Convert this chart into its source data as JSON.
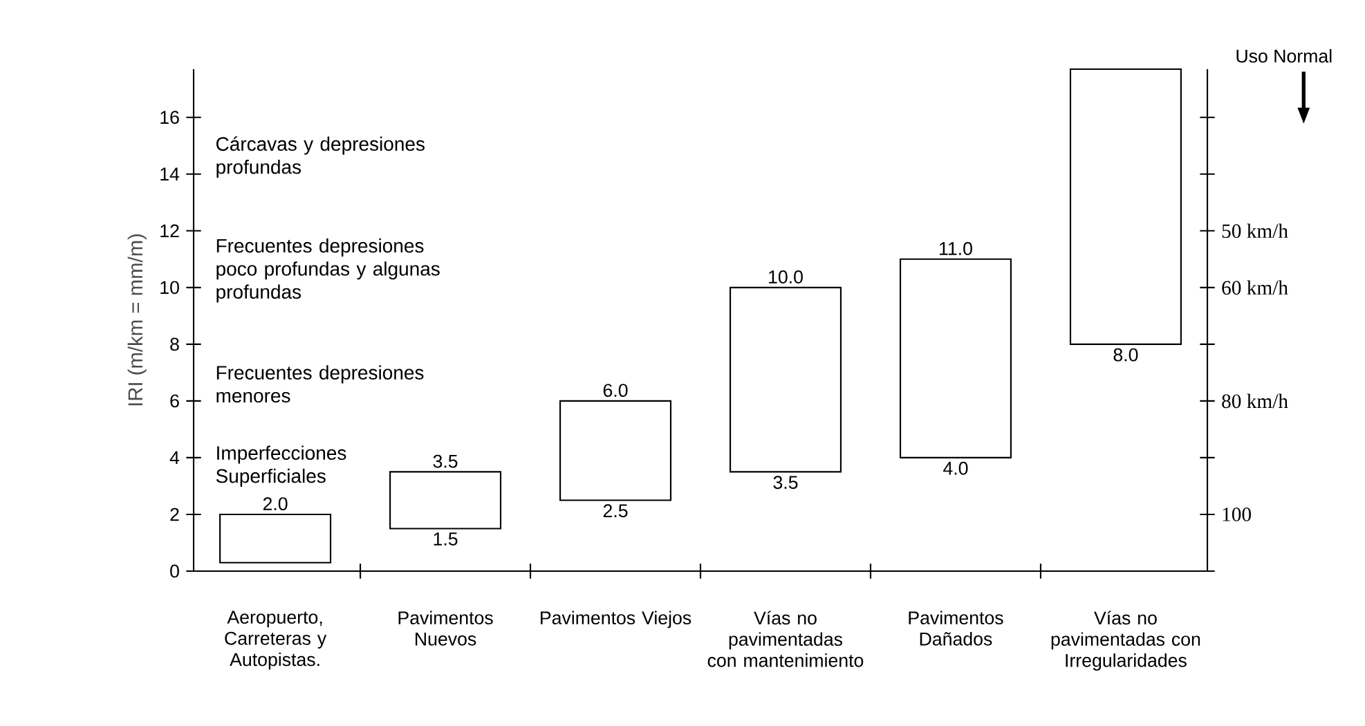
{
  "chart_data": {
    "type": "bar",
    "ylabel": "IRI (m/km = mm/m)",
    "categories": [
      "Aeropuerto, Carreteras y Autopistas.",
      "Pavimentos Nuevos",
      "Pavimentos Viejos",
      "Vías no pavimentadas con mantenimiento",
      "Pavimentos Dañados",
      "Vías no pavimentadas con Irregularidades"
    ],
    "base": [
      0.3,
      1.5,
      2.5,
      3.5,
      4.0,
      8.0
    ],
    "values": [
      1.7,
      2.0,
      3.5,
      6.5,
      7.0,
      9.7
    ],
    "color": "#ffffff",
    "ylim": [
      0,
      17.7
    ],
    "yticks": [
      0,
      2,
      4,
      6,
      8,
      10,
      12,
      14,
      16
    ],
    "grid": false,
    "annotations": [
      {
        "text": "2.0",
        "x": "Aeropuerto, Carreteras y Autopistas.",
        "y": 2.0
      },
      {
        "text": "3.5",
        "x": "Pavimentos Nuevos",
        "y": 3.5
      },
      {
        "text": "1.5",
        "x": "Pavimentos Nuevos",
        "y": 1.5
      },
      {
        "text": "6.0",
        "x": "Pavimentos Viejos",
        "y": 6.0
      },
      {
        "text": "2.5",
        "x": "Pavimentos Viejos",
        "y": 2.5
      },
      {
        "text": "10.0",
        "x": "Vías no pavimentadas con mantenimiento",
        "y": 10.0
      },
      {
        "text": "3.5",
        "x": "Vías no pavimentadas con mantenimiento",
        "y": 3.5
      },
      {
        "text": "11.0",
        "x": "Pavimentos Dañados",
        "y": 11.0
      },
      {
        "text": "4.0",
        "x": "Pavimentos Dañados",
        "y": 4.0
      },
      {
        "text": "8.0",
        "x": "Vías no pavimentadas con Irregularidades",
        "y": 8.0
      },
      "Cárcavas y depresiones profundas",
      "Frecuentes depresiones poco profundas y algunas profundas",
      "Frecuentes depresiones menores",
      "Imperfecciones Superficiales",
      "50 km/h",
      "60 km/h",
      "80 km/h",
      "100",
      "Uso Normal"
    ]
  }
}
